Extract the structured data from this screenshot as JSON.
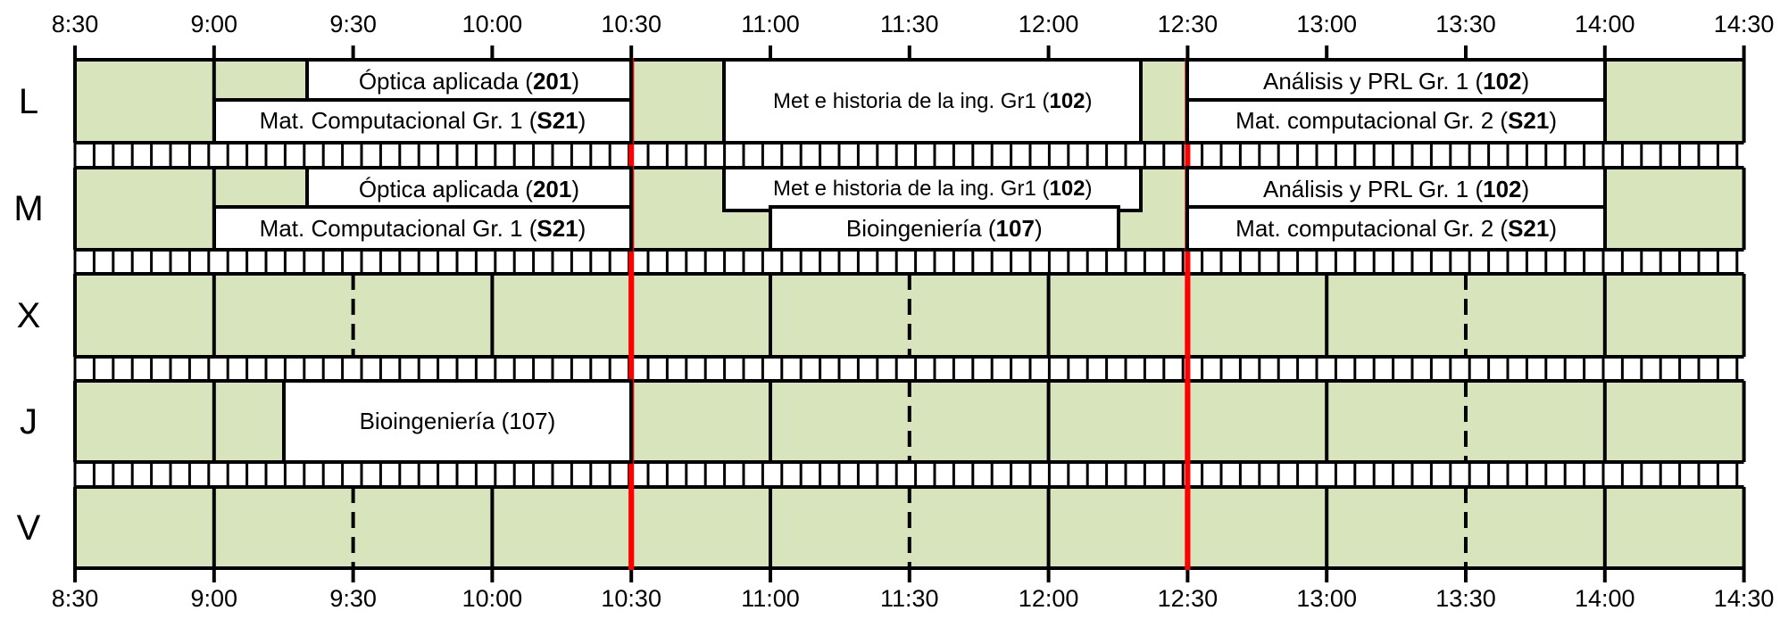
{
  "times": [
    "8:30",
    "9:00",
    "9:30",
    "10:00",
    "10:30",
    "11:00",
    "11:30",
    "12:00",
    "12:30",
    "13:00",
    "13:30",
    "14:00",
    "14:30"
  ],
  "days": [
    "L",
    "M",
    "X",
    "J",
    "V"
  ],
  "colors": {
    "grid_fill": "#d8e4bc",
    "line": "#000000",
    "break_line": "#ff0000",
    "class_fill": "#ffffff"
  },
  "break_times": [
    "10:30",
    "12:30"
  ],
  "classes": [
    {
      "day": "L",
      "slot": "top",
      "start": "9:20",
      "end": "10:30",
      "text": "Óptica aplicada (",
      "bold": "201",
      "after": ")"
    },
    {
      "day": "L",
      "slot": "bottom",
      "start": "9:00",
      "end": "10:30",
      "text": "Mat. Computacional Gr. 1 (",
      "bold": "S21",
      "after": ")"
    },
    {
      "day": "L",
      "slot": "full",
      "start": "10:50",
      "end": "12:20",
      "text": "Met e historia de la ing. Gr1 (",
      "bold": "102",
      "after": ")"
    },
    {
      "day": "L",
      "slot": "top",
      "start": "12:30",
      "end": "14:00",
      "text": "Análisis y PRL Gr. 1  (",
      "bold": "102",
      "after": ")"
    },
    {
      "day": "L",
      "slot": "bottom",
      "start": "12:30",
      "end": "14:00",
      "text": "Mat. computacional Gr. 2 (",
      "bold": "S21",
      "after": ")"
    },
    {
      "day": "M",
      "slot": "top",
      "start": "9:20",
      "end": "10:30",
      "text": "Óptica aplicada (",
      "bold": "201",
      "after": ")"
    },
    {
      "day": "M",
      "slot": "bottom",
      "start": "9:00",
      "end": "10:30",
      "text": "Mat. Computacional Gr. 1 (",
      "bold": "S21",
      "after": ")"
    },
    {
      "day": "M",
      "slot": "top",
      "start": "10:50",
      "end": "12:20",
      "text": "Met e historia de la ing. Gr1 (",
      "bold": "102",
      "after": ")"
    },
    {
      "day": "M",
      "slot": "bottom",
      "start": "11:00",
      "end": "12:15",
      "text": "Bioingeniería (",
      "bold": "107",
      "after": ")"
    },
    {
      "day": "M",
      "slot": "top",
      "start": "12:30",
      "end": "14:00",
      "text": "Análisis y PRL Gr. 1  (",
      "bold": "102",
      "after": ")"
    },
    {
      "day": "M",
      "slot": "bottom",
      "start": "12:30",
      "end": "14:00",
      "text": "Mat. computacional Gr. 2 (",
      "bold": "S21",
      "after": ")"
    },
    {
      "day": "J",
      "slot": "full",
      "start": "9:15",
      "end": "10:30",
      "text": "Bioingeniería (107)",
      "bold": "",
      "after": ""
    }
  ]
}
